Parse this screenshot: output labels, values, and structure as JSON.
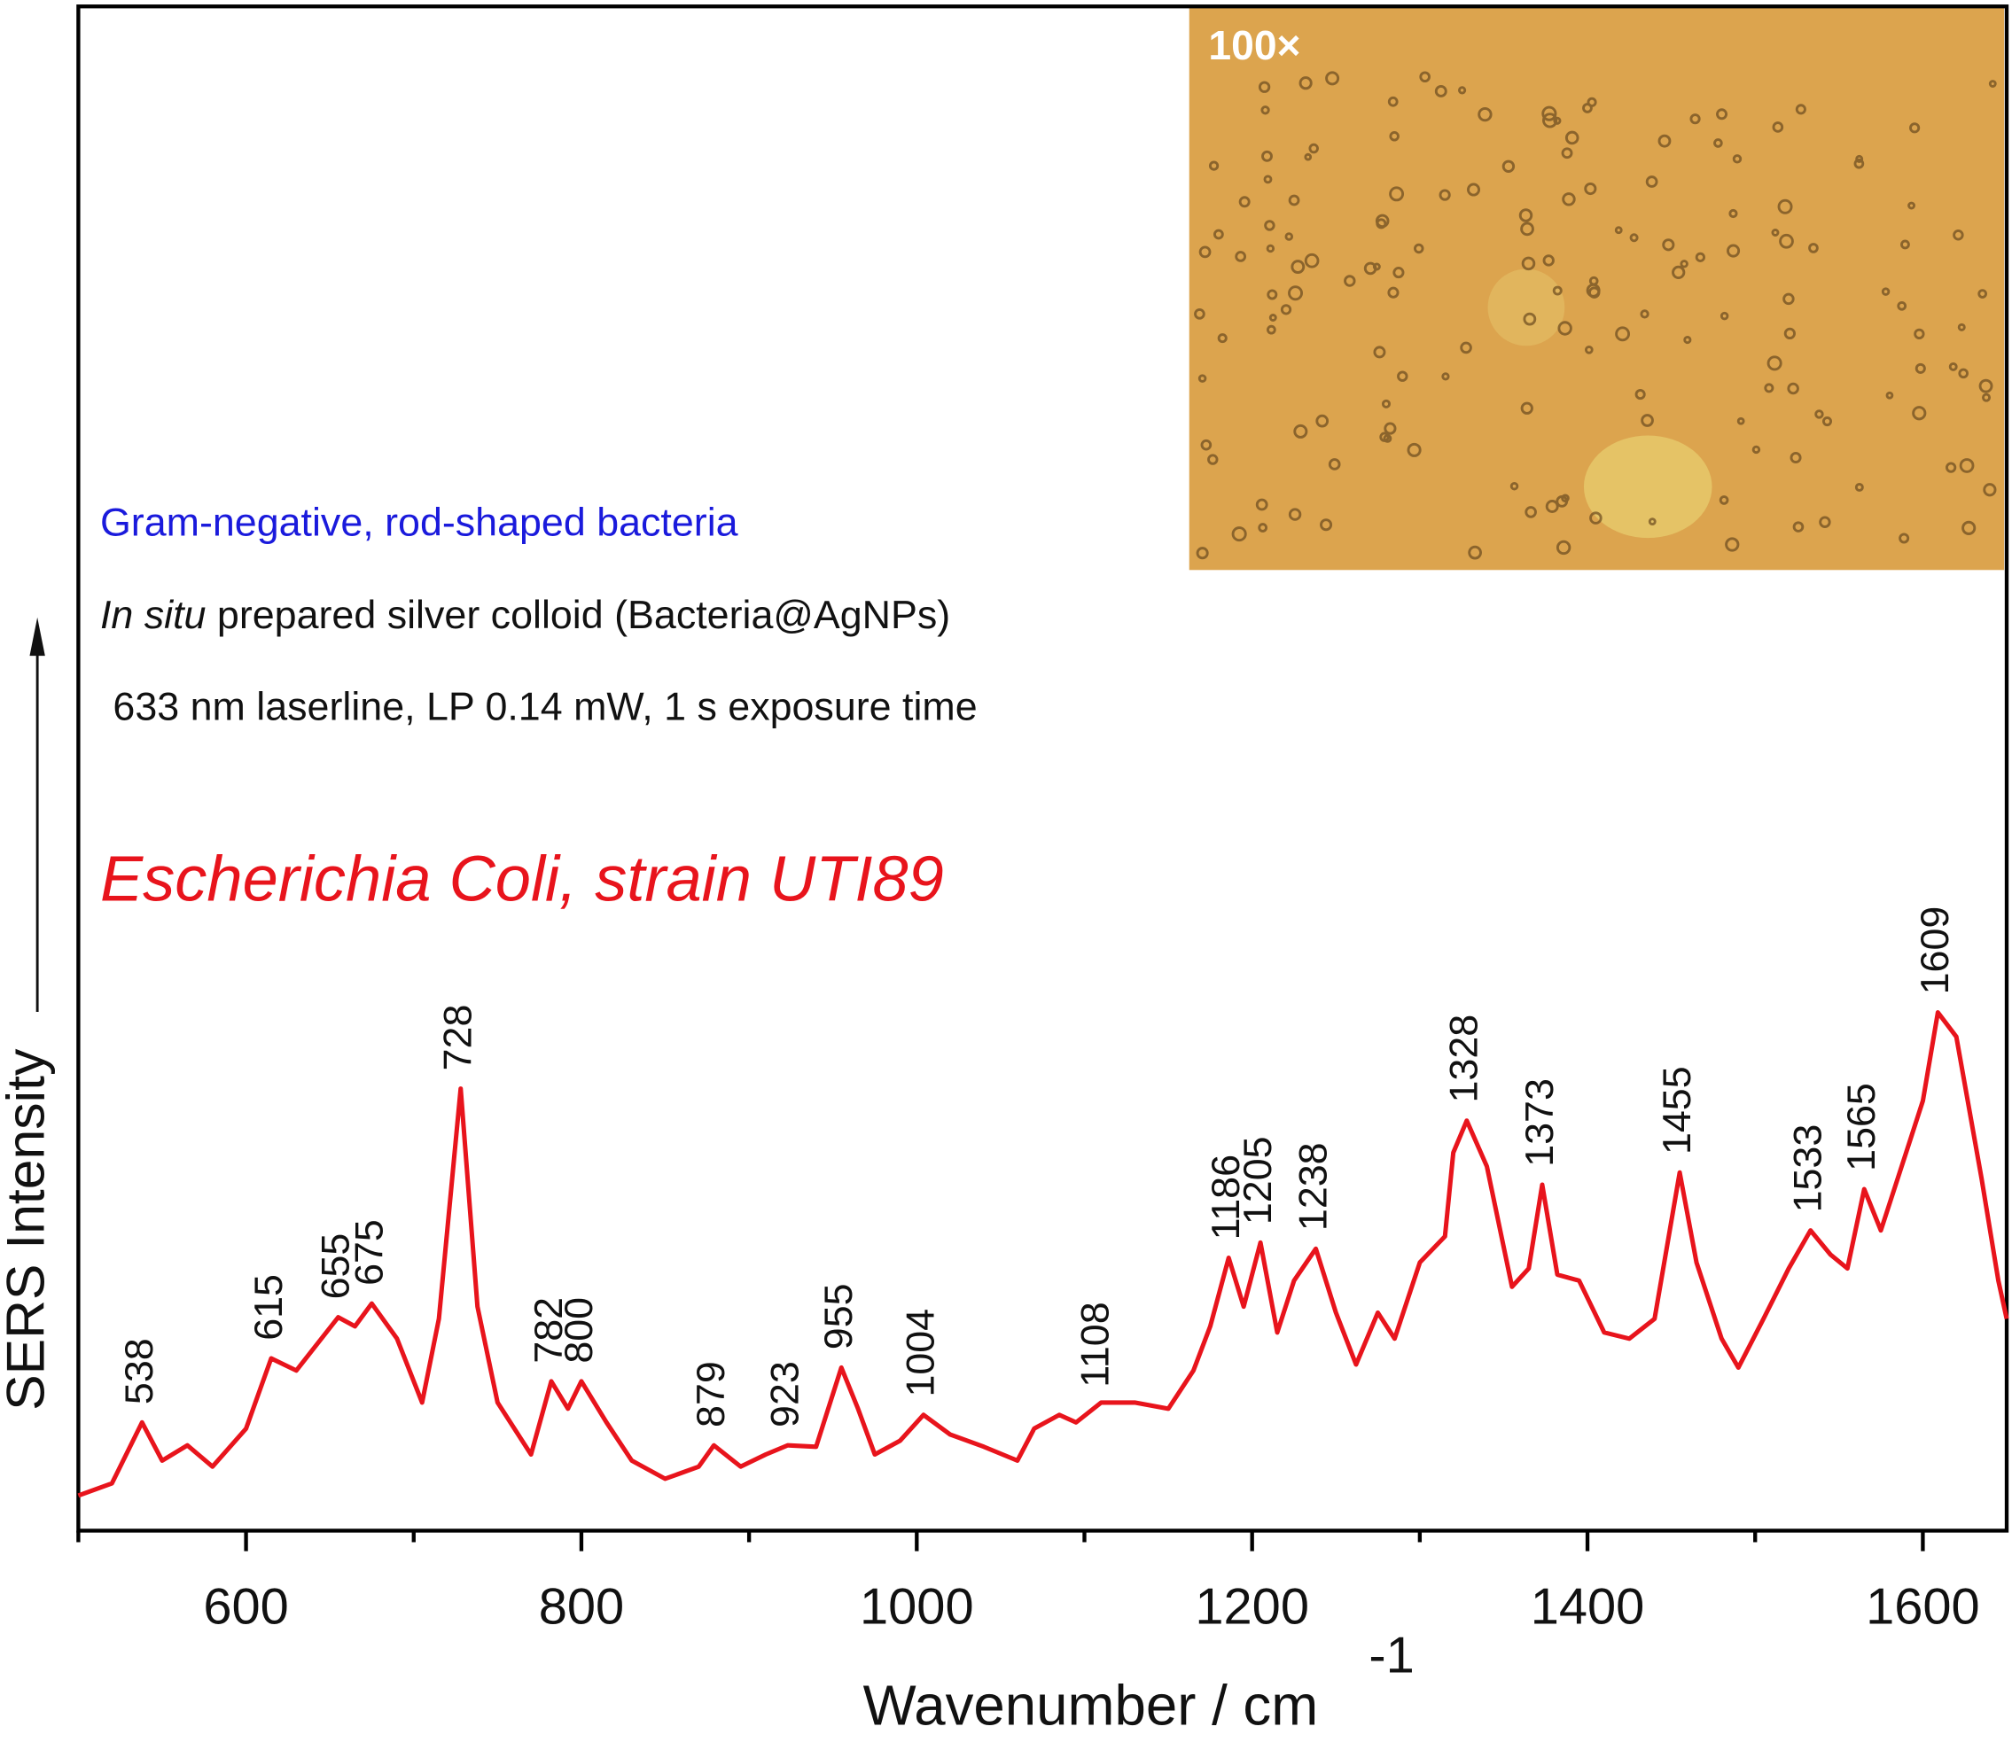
{
  "chart_data": {
    "type": "line",
    "title": "Escherichia Coli, strain UTI89",
    "annotations": {
      "line1": "Gram-negative, rod-shaped bacteria",
      "line2_italic": "In situ",
      "line2_rest": " prepared silver colloid (Bacteria@AgNPs)",
      "line3": "633 nm laserline, LP 0.14 mW, 1 s exposure time",
      "inset_label": "100×"
    },
    "xlabel": "Wavenumber / cm",
    "xlabel_sup": "-1",
    "ylabel": "SERS Intensity",
    "xlim": [
      500,
      1650
    ],
    "ylim": [
      0,
      100
    ],
    "xticks": [
      600,
      800,
      1000,
      1200,
      1400,
      1600
    ],
    "xminor_ticks": [
      500,
      700,
      900,
      1100,
      1300,
      1500
    ],
    "peaks": [
      538,
      615,
      655,
      675,
      728,
      782,
      800,
      879,
      923,
      955,
      1004,
      1108,
      1186,
      1205,
      1238,
      1328,
      1373,
      1455,
      1533,
      1565,
      1609
    ],
    "series": [
      {
        "color": "#e8141c",
        "x": [
          500,
          520,
          538,
          550,
          565,
          580,
          600,
          615,
          630,
          655,
          665,
          675,
          690,
          705,
          715,
          728,
          738,
          750,
          770,
          782,
          792,
          800,
          815,
          830,
          850,
          870,
          879,
          895,
          910,
          923,
          940,
          955,
          965,
          975,
          990,
          1004,
          1020,
          1040,
          1060,
          1070,
          1085,
          1095,
          1110,
          1130,
          1150,
          1165,
          1175,
          1186,
          1195,
          1205,
          1215,
          1225,
          1238,
          1250,
          1262,
          1275,
          1285,
          1300,
          1315,
          1320,
          1328,
          1340,
          1355,
          1365,
          1373,
          1382,
          1395,
          1410,
          1425,
          1440,
          1455,
          1465,
          1480,
          1490,
          1505,
          1520,
          1533,
          1545,
          1555,
          1565,
          1575,
          1590,
          1600,
          1609,
          1620,
          1635,
          1645,
          1650
        ],
        "values": [
          2.3,
          3.1,
          7.1,
          4.6,
          5.6,
          4.2,
          6.7,
          11.3,
          10.5,
          14.0,
          13.4,
          14.9,
          12.6,
          8.4,
          13.9,
          29.0,
          14.7,
          8.4,
          5.0,
          9.8,
          8.0,
          9.8,
          7.1,
          4.6,
          3.4,
          4.2,
          5.6,
          4.2,
          5.0,
          5.6,
          5.5,
          10.7,
          8.0,
          5.0,
          5.9,
          7.6,
          6.3,
          5.5,
          4.6,
          6.7,
          7.6,
          7.1,
          8.4,
          8.4,
          8.0,
          10.5,
          13.4,
          17.9,
          14.7,
          18.9,
          13.0,
          16.4,
          18.5,
          14.3,
          10.9,
          14.3,
          12.6,
          17.6,
          19.3,
          24.8,
          26.9,
          23.9,
          16.0,
          17.2,
          22.7,
          16.8,
          16.4,
          13.0,
          12.6,
          13.9,
          23.5,
          17.6,
          12.6,
          10.7,
          13.9,
          17.2,
          19.7,
          18.1,
          17.2,
          22.4,
          19.7,
          24.8,
          28.2,
          34.0,
          32.4,
          23.1,
          16.4,
          13.9
        ]
      }
    ]
  }
}
